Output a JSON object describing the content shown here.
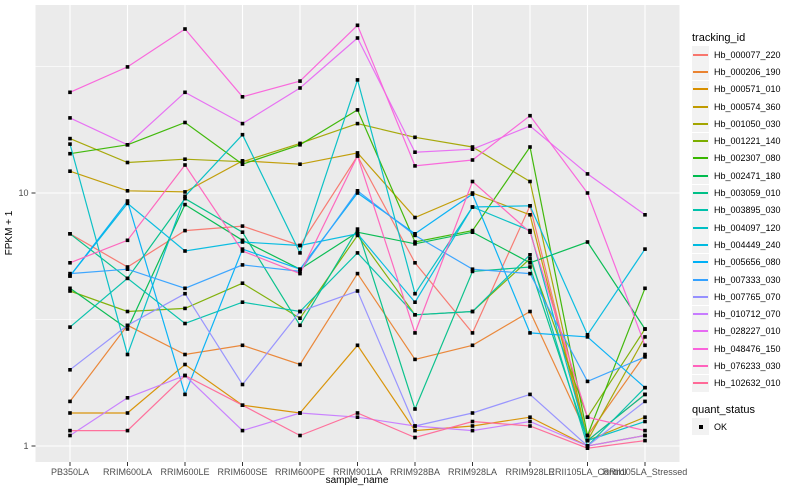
{
  "figure": {
    "background": "#FFFFFF",
    "panel_background": "#EBEBEB",
    "grid_color": "#FFFFFF",
    "tick_color": "#333333",
    "tick_label_color": "#4D4D4D",
    "point_color": "#000000",
    "legend_key_background": "#F2F2F2"
  },
  "chart_data": {
    "type": "line",
    "title": "",
    "xlabel": "sample_name",
    "ylabel": "FPKM + 1",
    "y_scale": "log10",
    "y_ticks": [
      1,
      10
    ],
    "y_minor_gridlines": [
      3.16,
      31.6
    ],
    "ylim": [
      0.87,
      55
    ],
    "grid": true,
    "legend_position": "right",
    "point_shape": "filled-square",
    "categories": [
      "PB350LA",
      "RRIM600LA",
      "RRIM600LE",
      "RRIM600SE",
      "RRIM600PE",
      "RRIM901LA",
      "RRIM928BA",
      "RRIM928LA",
      "RRIM928LE",
      "RRII105LA_Control",
      "RRII105LA_Stressed"
    ],
    "legend": {
      "title": "tracking_id"
    },
    "quant_legend": {
      "title": "quant_status",
      "entries": [
        {
          "label": "OK"
        }
      ]
    },
    "series": [
      {
        "name": "Hb_000077_220",
        "color": "#F8766D",
        "values": [
          6.9,
          5.1,
          7.1,
          7.4,
          6.2,
          14,
          5.3,
          2.8,
          8.9,
          1.05,
          1.6
        ]
      },
      {
        "name": "Hb_000206_190",
        "color": "#EA8331",
        "values": [
          1.5,
          3,
          2.3,
          2.5,
          2.1,
          4.8,
          2.2,
          2.5,
          3.4,
          1.1,
          2.3
        ]
      },
      {
        "name": "Hb_000571_010",
        "color": "#D89000",
        "values": [
          1.35,
          1.35,
          2.1,
          1.45,
          1.35,
          2.5,
          1.15,
          1.2,
          1.3,
          1,
          1.1
        ]
      },
      {
        "name": "Hb_000574_360",
        "color": "#C09B00",
        "values": [
          12.2,
          10.2,
          10.1,
          13.4,
          13,
          14.4,
          8,
          10,
          8.2,
          1.05,
          1.3
        ]
      },
      {
        "name": "Hb_001050_030",
        "color": "#A3A500",
        "values": [
          16.4,
          13.2,
          13.6,
          13.3,
          15.7,
          18.8,
          16.6,
          15.2,
          11.1,
          1.05,
          2.7
        ]
      },
      {
        "name": "Hb_001221_140",
        "color": "#7CAE00",
        "values": [
          4.1,
          3.4,
          3.5,
          4.4,
          3.2,
          6.8,
          3.3,
          3.4,
          5.5,
          1.3,
          2.9
        ]
      },
      {
        "name": "Hb_002307_080",
        "color": "#39B600",
        "values": [
          14.3,
          15.5,
          19,
          13,
          15.5,
          21.3,
          6.4,
          7.1,
          15.2,
          1.1,
          4.2
        ]
      },
      {
        "name": "Hb_002471_180",
        "color": "#00BB4E",
        "values": [
          4.2,
          2.9,
          9,
          6.5,
          5,
          7,
          6.3,
          7,
          5.3,
          6.4,
          2.9
        ]
      },
      {
        "name": "Hb_003059_010",
        "color": "#00C087",
        "values": [
          6.9,
          4.6,
          9.5,
          7,
          3,
          7.2,
          1.4,
          4.9,
          5.1,
          1.05,
          1.6
        ]
      },
      {
        "name": "Hb_003895_030",
        "color": "#00C1AB",
        "values": [
          2.95,
          4.6,
          3.05,
          3.7,
          3.4,
          5.8,
          3.3,
          3.4,
          5.7,
          1,
          1.7
        ]
      },
      {
        "name": "Hb_004097_120",
        "color": "#00BFC4",
        "values": [
          15.6,
          2.3,
          9.7,
          17,
          5.8,
          28,
          4,
          8.8,
          7.1,
          1.05,
          1.25
        ]
      },
      {
        "name": "Hb_004449_240",
        "color": "#00BAE0",
        "values": [
          4.7,
          9.1,
          5.9,
          6.4,
          6.2,
          6.9,
          3.7,
          8.8,
          8.9,
          2.75,
          6
        ]
      },
      {
        "name": "Hb_005656_080",
        "color": "#00B0F6",
        "values": [
          4.7,
          9.3,
          1.6,
          6,
          5,
          10,
          6.9,
          9.9,
          2.8,
          2.7,
          1.7
        ]
      },
      {
        "name": "Hb_007333_030",
        "color": "#35A2FF",
        "values": [
          4.8,
          5,
          4.2,
          5.2,
          4.9,
          10.2,
          6.8,
          5,
          4.8,
          1.8,
          2.25
        ]
      },
      {
        "name": "Hb_007765_070",
        "color": "#9590FF",
        "values": [
          2,
          3,
          4,
          1.75,
          3.4,
          4.1,
          1.2,
          1.35,
          1.6,
          1,
          1.5
        ]
      },
      {
        "name": "Hb_010712_070",
        "color": "#C77CFF",
        "values": [
          1.1,
          1.55,
          1.9,
          1.15,
          1.35,
          1.3,
          1.2,
          1.15,
          1.25,
          1,
          1.1
        ]
      },
      {
        "name": "Hb_028227_010",
        "color": "#E76BF3",
        "values": [
          19.8,
          15.5,
          25,
          18.8,
          26,
          41,
          14.5,
          14.9,
          18.4,
          11.9,
          8.2
        ]
      },
      {
        "name": "Hb_048476_150",
        "color": "#FA62DB",
        "values": [
          25,
          31.5,
          44.5,
          24,
          27.7,
          46,
          12.8,
          13.5,
          20.2,
          10,
          2.5
        ]
      },
      {
        "name": "Hb_076233_030",
        "color": "#FF62BC",
        "values": [
          5.3,
          6.5,
          12.9,
          5.9,
          4.8,
          14,
          2.8,
          11.1,
          7,
          1.3,
          1.15
        ]
      },
      {
        "name": "Hb_102632_010",
        "color": "#FF6A98",
        "values": [
          1.15,
          1.15,
          1.9,
          1.45,
          1.1,
          1.35,
          1.08,
          1.25,
          1.2,
          0.98,
          1.05
        ]
      }
    ]
  }
}
